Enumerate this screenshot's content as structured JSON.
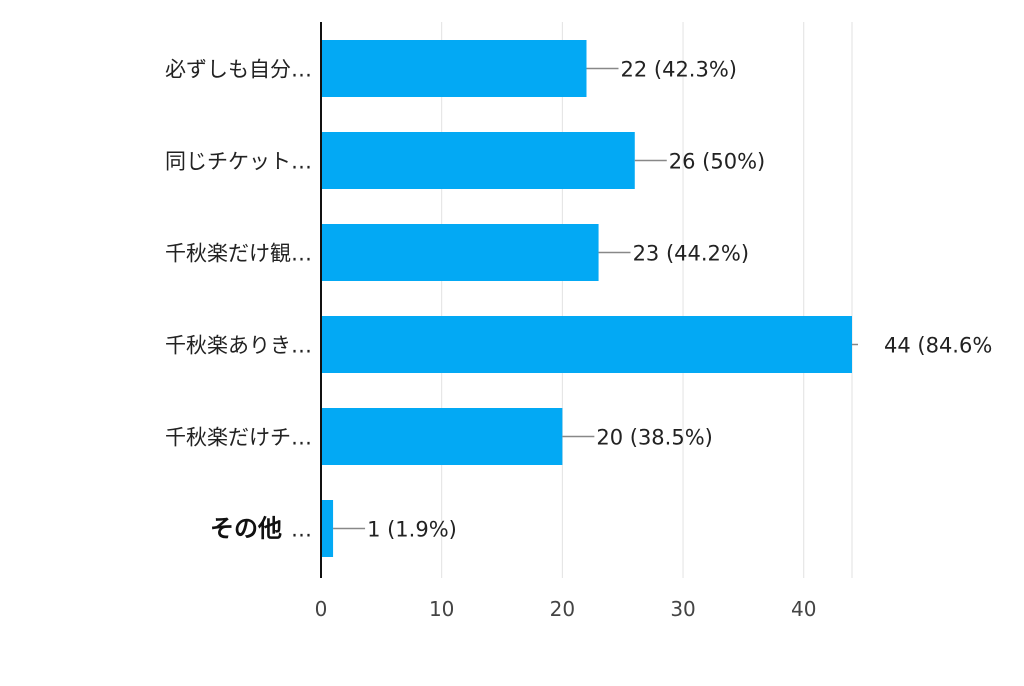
{
  "chart_data": {
    "type": "bar",
    "orientation": "horizontal",
    "title": "",
    "xlabel": "",
    "ylabel": "",
    "xlim": [
      0,
      44
    ],
    "x_ticks": [
      0,
      10,
      20,
      30,
      40
    ],
    "grid": true,
    "legend": "none",
    "bar_color": "#03A9F4",
    "categories": [
      "必ずしも自分…",
      "同じチケット…",
      "千秋楽だけ観…",
      "千秋楽ありき…",
      "千秋楽だけチ…",
      "その他"
    ],
    "category_suffixes": [
      "",
      "",
      "",
      "",
      "",
      "…"
    ],
    "values": [
      22,
      26,
      23,
      44,
      20,
      1
    ],
    "data_labels": [
      "22 (42.3%)",
      "26 (50%)",
      "23 (44.2%)",
      "44 (84.6%",
      "20 (38.5%)",
      "1 (1.9%)"
    ]
  }
}
